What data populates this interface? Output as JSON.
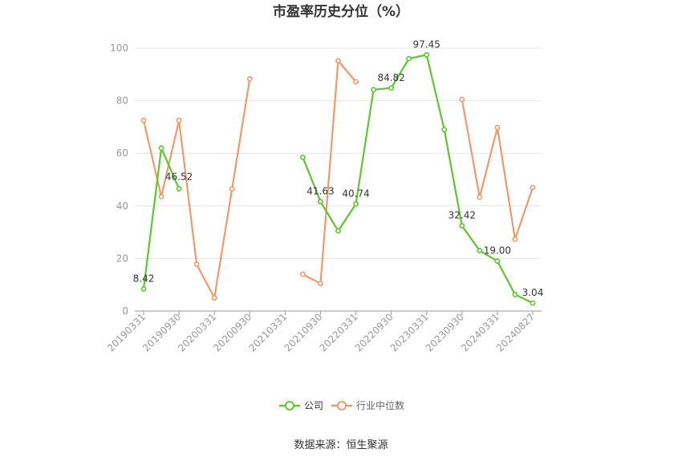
{
  "chart_data": {
    "type": "line",
    "title": "市盈率历史分位（%）",
    "source": "数据来源：恒生聚源",
    "ylim": [
      0,
      100
    ],
    "yticks": [
      0,
      20,
      40,
      60,
      80,
      100
    ],
    "x_tick_labels": [
      "20190331",
      "20190930",
      "20200331",
      "20200930",
      "20210331",
      "20210930",
      "20220331",
      "20220930",
      "20230331",
      "20230930",
      "20240331",
      "20240827"
    ],
    "x_tick_positions": [
      0,
      2,
      4,
      6,
      8,
      10,
      12,
      14,
      16,
      18,
      20,
      22
    ],
    "x_count": 23,
    "grid": true,
    "legend_position": "bottom",
    "series": [
      {
        "name": "公司",
        "color": "#5cc82e",
        "values": [
          8.42,
          62,
          46.52,
          null,
          null,
          null,
          null,
          null,
          null,
          58.5,
          41.63,
          30.5,
          40.74,
          84.2,
          84.82,
          96,
          97.45,
          69,
          32.42,
          23,
          19.0,
          6.3,
          3.04
        ],
        "labels": {
          "0": "8.42",
          "2": "46.52",
          "10": "41.63",
          "12": "40.74",
          "14": "84.82",
          "16": "97.45",
          "18": "32.42",
          "20": "19.00",
          "22": "3.04"
        }
      },
      {
        "name": "行业中位数",
        "color": "#f4986b",
        "values": [
          72.5,
          43.5,
          72.5,
          17.8,
          5,
          46.5,
          88.3,
          null,
          null,
          14,
          10.5,
          95.2,
          87.2,
          null,
          null,
          null,
          null,
          null,
          80.5,
          43.3,
          69.8,
          27.3,
          47
        ]
      }
    ]
  }
}
